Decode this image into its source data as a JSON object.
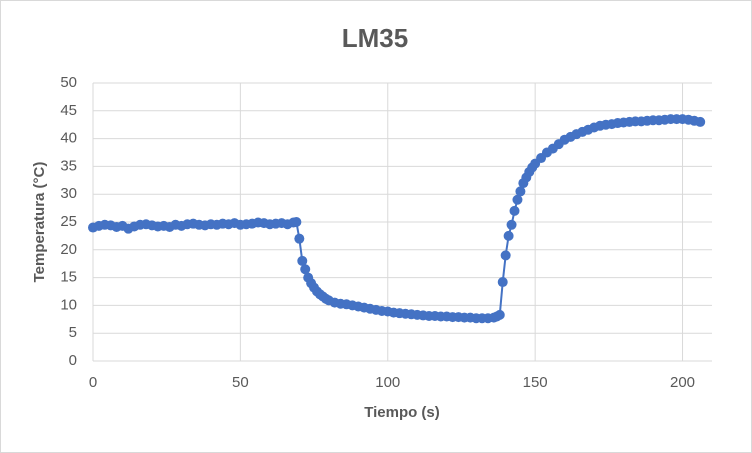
{
  "chart_data": {
    "type": "line",
    "title": "LM35",
    "x_label": "Tiempo (s)",
    "y_label": "Temperatura (°C)",
    "x": [
      0,
      2,
      4,
      6,
      8,
      10,
      12,
      14,
      16,
      18,
      20,
      22,
      24,
      26,
      28,
      30,
      32,
      34,
      36,
      38,
      40,
      42,
      44,
      46,
      48,
      50,
      52,
      54,
      56,
      58,
      60,
      62,
      64,
      66,
      68,
      69,
      70,
      71,
      72,
      73,
      74,
      75,
      76,
      77,
      78,
      79,
      80,
      82,
      84,
      86,
      88,
      90,
      92,
      94,
      96,
      98,
      100,
      102,
      104,
      106,
      108,
      110,
      112,
      114,
      116,
      118,
      120,
      122,
      124,
      126,
      128,
      130,
      132,
      134,
      136,
      137,
      138,
      139,
      140,
      141,
      142,
      143,
      144,
      145,
      146,
      147,
      148,
      149,
      150,
      152,
      154,
      156,
      158,
      160,
      162,
      164,
      166,
      168,
      170,
      172,
      174,
      176,
      178,
      180,
      182,
      184,
      186,
      188,
      190,
      192,
      194,
      196,
      198,
      200,
      202,
      204,
      206
    ],
    "values": [
      24,
      24.3,
      24.5,
      24.4,
      24.1,
      24.3,
      23.8,
      24.2,
      24.5,
      24.6,
      24.4,
      24.2,
      24.3,
      24.1,
      24.5,
      24.3,
      24.6,
      24.7,
      24.5,
      24.4,
      24.6,
      24.5,
      24.7,
      24.6,
      24.8,
      24.5,
      24.6,
      24.7,
      24.9,
      24.8,
      24.6,
      24.7,
      24.8,
      24.6,
      24.9,
      25,
      22,
      18,
      16.5,
      15,
      14,
      13.2,
      12.5,
      12,
      11.6,
      11.2,
      10.9,
      10.5,
      10.3,
      10.2,
      10,
      9.8,
      9.6,
      9.4,
      9.2,
      9,
      8.9,
      8.7,
      8.6,
      8.5,
      8.4,
      8.3,
      8.2,
      8.1,
      8.1,
      8,
      8,
      7.9,
      7.9,
      7.8,
      7.8,
      7.7,
      7.7,
      7.7,
      7.8,
      8,
      8.3,
      14.2,
      19,
      22.5,
      24.5,
      27,
      29,
      30.5,
      32,
      33,
      34,
      34.8,
      35.5,
      36.5,
      37.5,
      38.2,
      39,
      39.8,
      40.3,
      40.8,
      41.2,
      41.6,
      42,
      42.3,
      42.5,
      42.6,
      42.8,
      42.9,
      43,
      43.1,
      43.1,
      43.2,
      43.3,
      43.3,
      43.4,
      43.5,
      43.5,
      43.5,
      43.4,
      43.2,
      43
    ],
    "color": "#4472c4",
    "xlim": [
      0,
      210
    ],
    "ylim": [
      0,
      50
    ],
    "xticks": [
      0,
      50,
      100,
      150,
      200
    ],
    "yticks": [
      0,
      5,
      10,
      15,
      20,
      25,
      30,
      35,
      40,
      45,
      50
    ],
    "grid": true
  }
}
